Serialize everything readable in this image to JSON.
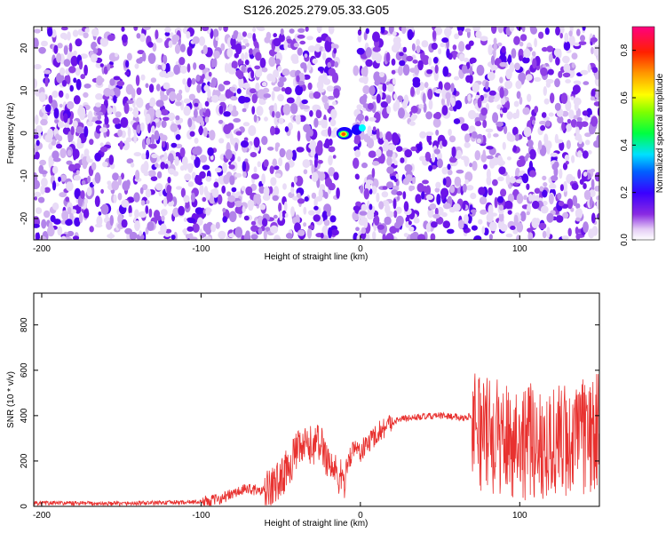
{
  "title": "S126.2025.279.05.33.G05",
  "chart_data": [
    {
      "type": "heatmap",
      "xlabel": "Height of straight line (km)",
      "ylabel": "Frequency (Hz)",
      "xlim": [
        -205,
        150
      ],
      "ylim": [
        -25,
        25
      ],
      "xticks": [
        -200,
        -100,
        0,
        100
      ],
      "xtick_labels": [
        "-200",
        "-100",
        "0",
        "100"
      ],
      "yticks": [
        -20,
        -10,
        0,
        10,
        20
      ],
      "ytick_labels": [
        "-20",
        "-10",
        "0",
        "10",
        "20"
      ],
      "masked_x_range": [
        -14,
        -3
      ],
      "peak": {
        "x": -10,
        "y": 0,
        "amplitude": 0.75
      },
      "background_amplitude_range": [
        0.0,
        0.25
      ],
      "colorbar": {
        "label": "Normalized spectral amplitude",
        "range": [
          0.0,
          0.9
        ],
        "ticks": [
          0.0,
          0.2,
          0.4,
          0.6,
          0.8
        ],
        "tick_labels": [
          "0.0",
          "0.2",
          "0.4",
          "0.6",
          "0.8"
        ]
      },
      "grid": false
    },
    {
      "type": "line",
      "xlabel": "Height of straight line (km)",
      "ylabel": "SNR (10 * v/v)",
      "xlim": [
        -205,
        150
      ],
      "ylim": [
        0,
        940
      ],
      "xticks": [
        -200,
        -100,
        0,
        100
      ],
      "xtick_labels": [
        "-200",
        "-100",
        "0",
        "100"
      ],
      "yticks": [
        0,
        200,
        400,
        600,
        800
      ],
      "ytick_labels": [
        "0",
        "200",
        "400",
        "600",
        "800"
      ],
      "color": "#e8312f",
      "grid": false,
      "series": [
        {
          "name": "SNR",
          "x": [
            -205,
            -150,
            -100,
            -90,
            -80,
            -70,
            -60,
            -50,
            -45,
            -40,
            -35,
            -30,
            -25,
            -20,
            -15,
            -12,
            -10,
            -8,
            -5,
            -3,
            0,
            5,
            10,
            15,
            20,
            25,
            30,
            40,
            50,
            60,
            65,
            70,
            72,
            75,
            80,
            90,
            100,
            110,
            120,
            130,
            140,
            150
          ],
          "y": [
            15,
            12,
            20,
            30,
            55,
            80,
            60,
            120,
            180,
            240,
            260,
            270,
            280,
            200,
            140,
            120,
            100,
            200,
            240,
            260,
            240,
            280,
            320,
            350,
            370,
            385,
            390,
            395,
            400,
            395,
            390,
            400,
            390,
            330,
            310,
            300,
            290,
            280,
            285,
            290,
            300,
            330
          ]
        }
      ],
      "noise_amplitude": [
        {
          "x_range": [
            -205,
            -100
          ],
          "amplitude": 10
        },
        {
          "x_range": [
            -100,
            -60
          ],
          "amplitude": 25
        },
        {
          "x_range": [
            -60,
            -10
          ],
          "amplitude": 90
        },
        {
          "x_range": [
            -10,
            20
          ],
          "amplitude": 50
        },
        {
          "x_range": [
            20,
            70
          ],
          "amplitude": 15
        },
        {
          "x_range": [
            70,
            150
          ],
          "amplitude": 260
        }
      ]
    }
  ]
}
